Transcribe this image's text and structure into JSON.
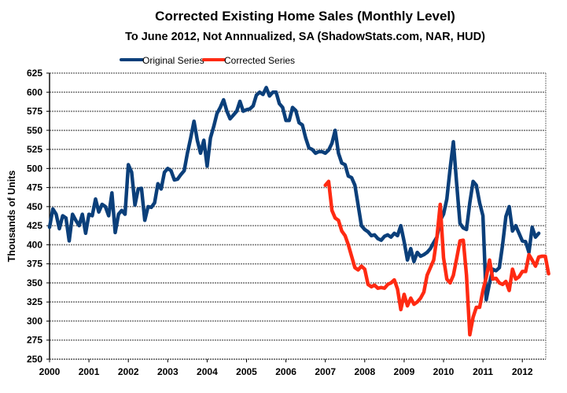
{
  "chart_data": {
    "type": "line",
    "title": "Corrected Existing Home Sales (Monthly Level)",
    "subtitle": "To June 2012, Not Annnualized, SA (ShadowStats.com, NAR, HUD)",
    "xlabel": "",
    "ylabel": "Thousands of Units",
    "xlim": [
      2000,
      2012.6
    ],
    "ylim": [
      250,
      625
    ],
    "y_ticks": [
      250,
      275,
      300,
      325,
      350,
      375,
      400,
      425,
      450,
      475,
      500,
      525,
      550,
      575,
      600,
      625
    ],
    "x_ticks": [
      2000,
      2001,
      2002,
      2003,
      2004,
      2005,
      2006,
      2007,
      2008,
      2009,
      2010,
      2011,
      2012
    ],
    "x_tick_labels": [
      "2000",
      "2001",
      "2002",
      "2003",
      "2004",
      "2005",
      "2006",
      "2007",
      "2008",
      "2009",
      "2010",
      "2011",
      "2012"
    ],
    "grid": "horizontal",
    "legend_position": "top-center",
    "frequency": "monthly",
    "series": [
      {
        "name": "Original Series",
        "color": "#0b3f7a",
        "start": 2000.0,
        "values": [
          423,
          447,
          440,
          421,
          438,
          435,
          405,
          440,
          432,
          425,
          440,
          415,
          440,
          438,
          460,
          443,
          453,
          450,
          438,
          468,
          416,
          440,
          445,
          440,
          505,
          495,
          452,
          473,
          474,
          432,
          450,
          449,
          455,
          480,
          473,
          495,
          500,
          497,
          485,
          486,
          492,
          497,
          520,
          540,
          562,
          537,
          520,
          537,
          503,
          540,
          555,
          572,
          580,
          590,
          575,
          565,
          570,
          575,
          588,
          575,
          577,
          578,
          582,
          596,
          600,
          597,
          606,
          595,
          600,
          600,
          585,
          580,
          563,
          563,
          580,
          576,
          560,
          557,
          540,
          527,
          525,
          520,
          522,
          522,
          520,
          524,
          533,
          550,
          520,
          507,
          505,
          490,
          488,
          478,
          452,
          425,
          420,
          417,
          412,
          413,
          408,
          406,
          411,
          413,
          410,
          415,
          412,
          425,
          404,
          380,
          395,
          378,
          390,
          385,
          387,
          390,
          395,
          403,
          410,
          432,
          440,
          460,
          500,
          535,
          480,
          428,
          422,
          420,
          455,
          483,
          478,
          455,
          438,
          328,
          350,
          368,
          366,
          370,
          400,
          437,
          450,
          418,
          425,
          415,
          405,
          404,
          390,
          423,
          410,
          415
        ]
      },
      {
        "name": "Corrected Series",
        "color": "#ff2a12",
        "start": 2007.0,
        "values": [
          478,
          483,
          445,
          435,
          432,
          418,
          412,
          400,
          385,
          370,
          367,
          372,
          368,
          348,
          345,
          347,
          343,
          344,
          343,
          348,
          350,
          354,
          342,
          315,
          335,
          320,
          330,
          322,
          325,
          330,
          338,
          360,
          370,
          380,
          410,
          453,
          383,
          355,
          350,
          360,
          382,
          405,
          406,
          360,
          282,
          305,
          318,
          318,
          340,
          357,
          380,
          355,
          356,
          350,
          348,
          352,
          340,
          368,
          355,
          358,
          365,
          365,
          387,
          380,
          372,
          384,
          385,
          385,
          362
        ]
      }
    ]
  }
}
